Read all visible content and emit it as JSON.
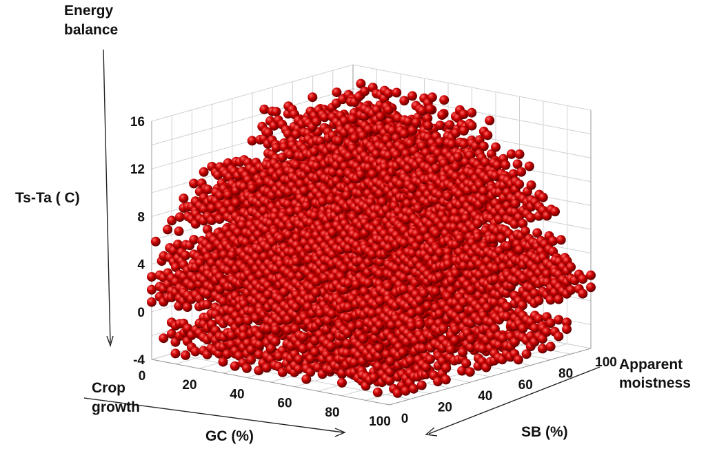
{
  "chart_data": {
    "type": "scatter",
    "subtype": "3d-scatter",
    "marker": "sphere",
    "marker_color": "#cc0000",
    "grid": true,
    "z_axis": {
      "label": "Ts-Ta ( C)",
      "annotation": "Energy balance",
      "range": [
        -4,
        16
      ],
      "ticks": [
        "-4",
        "0",
        "4",
        "8",
        "12",
        "16"
      ]
    },
    "x_axis": {
      "label": "GC (%)",
      "annotation": "Crop growth",
      "range": [
        0,
        100
      ],
      "ticks": [
        "0",
        "20",
        "40",
        "60",
        "80",
        "100"
      ]
    },
    "y_axis": {
      "label": "SB (%)",
      "annotation": "Apparent moistness",
      "range": [
        0,
        100
      ],
      "ticks": [
        "0",
        "20",
        "40",
        "60",
        "80",
        "100"
      ]
    },
    "layers": [
      {
        "z": 14.6,
        "gc": [
          5,
          55
        ],
        "sb": [
          50,
          100
        ],
        "density": 0.55
      },
      {
        "z": 13.6,
        "gc": [
          5,
          60
        ],
        "sb": [
          45,
          100
        ],
        "density": 0.6
      },
      {
        "z": 12.6,
        "gc": [
          5,
          60
        ],
        "sb": [
          40,
          100
        ],
        "density": 0.6
      },
      {
        "z": 11.2,
        "gc": [
          5,
          70
        ],
        "sb": [
          20,
          100
        ],
        "density": 0.85
      },
      {
        "z": 10.2,
        "gc": [
          5,
          75
        ],
        "sb": [
          15,
          100
        ],
        "density": 0.9
      },
      {
        "z": 9.2,
        "gc": [
          5,
          80
        ],
        "sb": [
          10,
          100
        ],
        "density": 0.9
      },
      {
        "z": 8.2,
        "gc": [
          0,
          85
        ],
        "sb": [
          10,
          100
        ],
        "density": 0.9
      },
      {
        "z": 7.2,
        "gc": [
          0,
          90
        ],
        "sb": [
          10,
          100
        ],
        "density": 0.85
      },
      {
        "z": 5.0,
        "gc": [
          0,
          90
        ],
        "sb": [
          5,
          100
        ],
        "density": 0.9
      },
      {
        "z": 4.0,
        "gc": [
          0,
          95
        ],
        "sb": [
          5,
          100
        ],
        "density": 0.9
      },
      {
        "z": 3.0,
        "gc": [
          0,
          95
        ],
        "sb": [
          0,
          100
        ],
        "density": 0.9
      },
      {
        "z": 2.0,
        "gc": [
          0,
          100
        ],
        "sb": [
          0,
          100
        ],
        "density": 0.9
      },
      {
        "z": 1.0,
        "gc": [
          0,
          100
        ],
        "sb": [
          0,
          100
        ],
        "density": 0.85
      },
      {
        "z": -1.0,
        "gc": [
          5,
          100
        ],
        "sb": [
          0,
          90
        ],
        "density": 0.7
      },
      {
        "z": -2.0,
        "gc": [
          5,
          100
        ],
        "sb": [
          0,
          90
        ],
        "density": 0.7
      },
      {
        "z": -3.0,
        "gc": [
          10,
          100
        ],
        "sb": [
          0,
          80
        ],
        "density": 0.6
      }
    ]
  }
}
